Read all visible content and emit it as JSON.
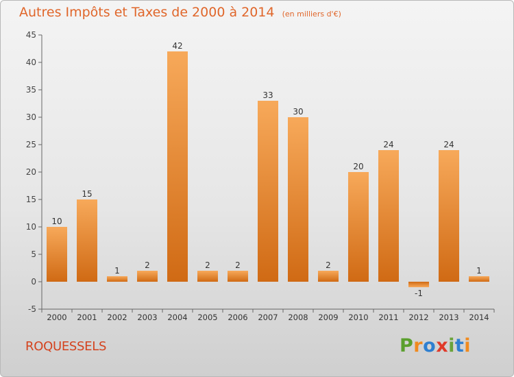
{
  "title": "Autres Impôts et Taxes de 2000 à 2014",
  "subtitle": "(en milliers d'€)",
  "commune": "ROQUESSELS",
  "logo": {
    "text": "Proxiti",
    "letters": [
      "P",
      "r",
      "o",
      "x",
      "i",
      "t",
      "i"
    ],
    "colors": [
      "#5a9f2d",
      "#f08a1e",
      "#2e7fd0",
      "#e03a2a",
      "#6aa33a",
      "#2e7fd0",
      "#f08a1e"
    ]
  },
  "colors": {
    "bar_light": "#f7a95a",
    "bar_dark": "#d06a14",
    "title": "#e0662a",
    "commune": "#d4421d"
  },
  "chart_data": {
    "type": "bar",
    "categories": [
      "2000",
      "2001",
      "2002",
      "2003",
      "2004",
      "2005",
      "2006",
      "2007",
      "2008",
      "2009",
      "2010",
      "2011",
      "2012",
      "2013",
      "2014"
    ],
    "values": [
      10,
      15,
      1,
      2,
      42,
      2,
      2,
      33,
      30,
      2,
      20,
      24,
      -1,
      24,
      1
    ],
    "ylim": [
      -5,
      45
    ],
    "yticks": [
      -5,
      0,
      5,
      10,
      15,
      20,
      25,
      30,
      35,
      40,
      45
    ],
    "grid": false,
    "legend": "none"
  }
}
